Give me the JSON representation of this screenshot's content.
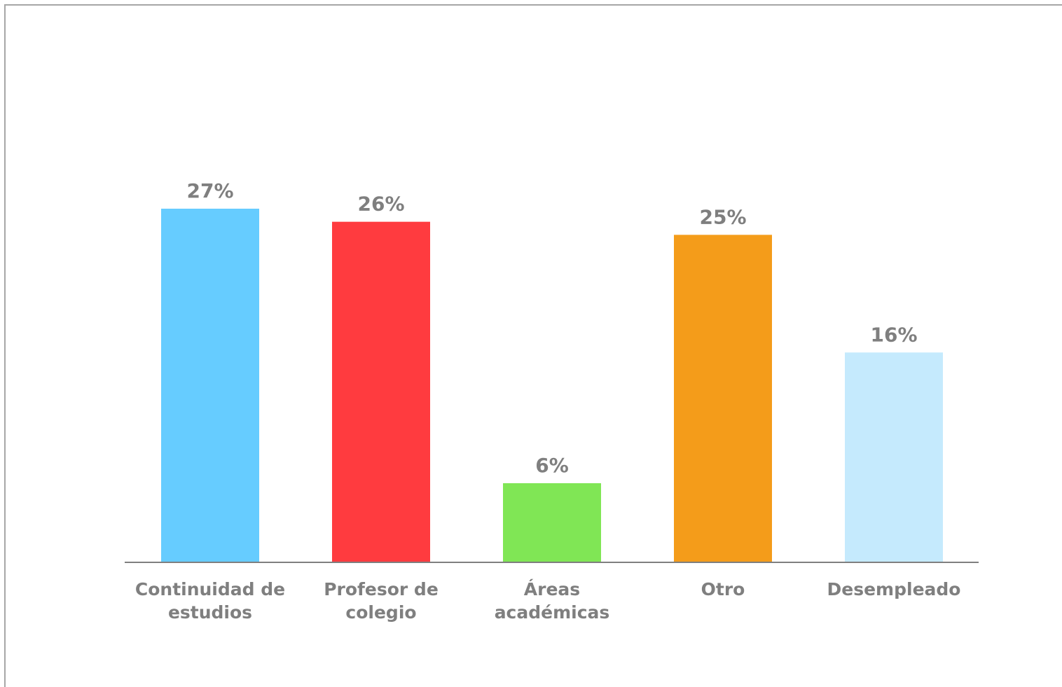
{
  "chart_data": {
    "type": "bar",
    "title": "",
    "xlabel": "",
    "ylabel": "",
    "ylim": [
      0,
      30
    ],
    "grid": false,
    "legend": "none",
    "value_suffix": "%",
    "categories": [
      [
        "Continuidad de",
        "estudios"
      ],
      [
        "Profesor de",
        "colegio"
      ],
      [
        "Áreas",
        "académicas"
      ],
      [
        "Otro"
      ],
      [
        "Desempleado"
      ]
    ],
    "values": [
      27,
      26,
      6,
      25,
      16
    ],
    "value_labels": [
      "27%",
      "26%",
      "6%",
      "25%",
      "16%"
    ],
    "colors": [
      "#66ccff",
      "#ff3b3f",
      "#80e655",
      "#f49c1a",
      "#c5eafd"
    ],
    "axis_color": "#7f7f7f",
    "label_color": "#7f7f7f"
  }
}
